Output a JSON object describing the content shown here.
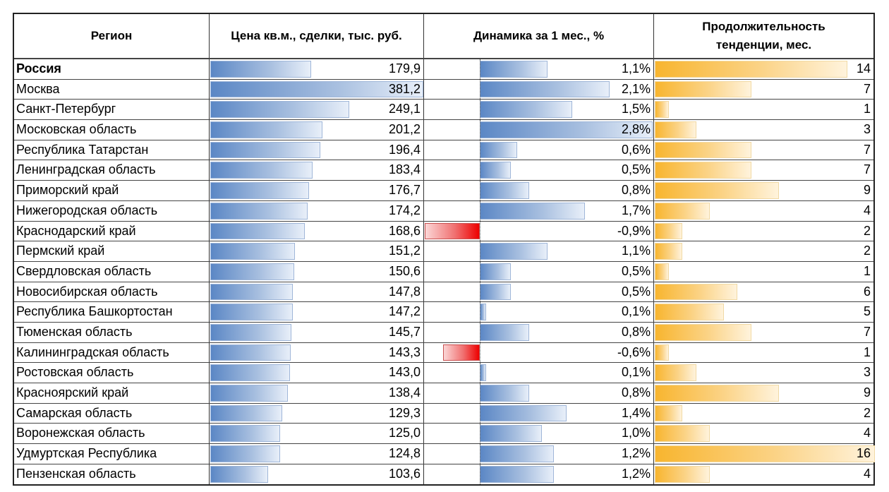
{
  "chart_data": {
    "type": "table",
    "title": "",
    "columns": [
      "Регион",
      "Цена кв.м., сделки, тыс. руб.",
      "Динамика за 1 мес., %",
      "Продолжительность тенденции, мес."
    ],
    "categories": [
      "Россия",
      "Москва",
      "Санкт-Петербург",
      "Московская область",
      "Республика Татарстан",
      "Ленинградская область",
      "Приморский край",
      "Нижегородская область",
      "Краснодарский край",
      "Пермский край",
      "Свердловская область",
      "Новосибирская область",
      "Республика Башкортостан",
      "Тюменская область",
      "Калининградская область",
      "Ростовская область",
      "Красноярский край",
      "Самарская область",
      "Воронежская область",
      "Удмуртская Республика",
      "Пензенская область"
    ],
    "series": [
      {
        "name": "Цена кв.м., сделки, тыс. руб.",
        "values": [
          179.9,
          381.2,
          249.1,
          201.2,
          196.4,
          183.4,
          176.7,
          174.2,
          168.6,
          151.2,
          150.6,
          147.8,
          147.2,
          145.7,
          143.3,
          143.0,
          138.4,
          129.3,
          125.0,
          124.8,
          103.6
        ]
      },
      {
        "name": "Динамика за 1 мес., %",
        "values": [
          1.1,
          2.1,
          1.5,
          2.8,
          0.6,
          0.5,
          0.8,
          1.7,
          -0.9,
          1.1,
          0.5,
          0.5,
          0.1,
          0.8,
          -0.6,
          0.1,
          0.8,
          1.4,
          1.0,
          1.2,
          1.2
        ]
      },
      {
        "name": "Продолжительность тенденции, мес.",
        "values": [
          14,
          7,
          1,
          3,
          7,
          7,
          9,
          4,
          2,
          2,
          1,
          6,
          5,
          7,
          1,
          3,
          9,
          2,
          4,
          16,
          4
        ]
      }
    ],
    "colors": {
      "price_bar": "#5b87c5",
      "positive_bar": "#5b87c5",
      "negative_bar": "#ee0000",
      "duration_bar": "#f8b52f"
    }
  },
  "header": {
    "region": "Регион",
    "price": "Цена кв.м., сделки, тыс. руб.",
    "dynamics": "Динамика за 1 мес., %",
    "duration_line1": "Продолжительность",
    "duration_line2": "тенденции, мес."
  },
  "rows": [
    {
      "region": "Россия",
      "price": "179,9",
      "dyn": "1,1%",
      "dur": "14",
      "bold": true
    },
    {
      "region": "Москва",
      "price": "381,2",
      "dyn": "2,1%",
      "dur": "7"
    },
    {
      "region": "Санкт-Петербург",
      "price": "249,1",
      "dyn": "1,5%",
      "dur": "1"
    },
    {
      "region": "Московская область",
      "price": "201,2",
      "dyn": "2,8%",
      "dur": "3"
    },
    {
      "region": "Республика Татарстан",
      "price": "196,4",
      "dyn": "0,6%",
      "dur": "7"
    },
    {
      "region": "Ленинградская область",
      "price": "183,4",
      "dyn": "0,5%",
      "dur": "7"
    },
    {
      "region": "Приморский край",
      "price": "176,7",
      "dyn": "0,8%",
      "dur": "9"
    },
    {
      "region": "Нижегородская область",
      "price": "174,2",
      "dyn": "1,7%",
      "dur": "4"
    },
    {
      "region": "Краснодарский край",
      "price": "168,6",
      "dyn": "-0,9%",
      "dur": "2"
    },
    {
      "region": "Пермский край",
      "price": "151,2",
      "dyn": "1,1%",
      "dur": "2"
    },
    {
      "region": "Свердловская область",
      "price": "150,6",
      "dyn": "0,5%",
      "dur": "1"
    },
    {
      "region": "Новосибирская область",
      "price": "147,8",
      "dyn": "0,5%",
      "dur": "6"
    },
    {
      "region": "Республика Башкортостан",
      "price": "147,2",
      "dyn": "0,1%",
      "dur": "5"
    },
    {
      "region": "Тюменская область",
      "price": "145,7",
      "dyn": "0,8%",
      "dur": "7"
    },
    {
      "region": "Калининградская область",
      "price": "143,3",
      "dyn": "-0,6%",
      "dur": "1"
    },
    {
      "region": "Ростовская область",
      "price": "143,0",
      "dyn": "0,1%",
      "dur": "3"
    },
    {
      "region": "Красноярский край",
      "price": "138,4",
      "dyn": "0,8%",
      "dur": "9"
    },
    {
      "region": "Самарская область",
      "price": "129,3",
      "dyn": "1,4%",
      "dur": "2"
    },
    {
      "region": "Воронежская область",
      "price": "125,0",
      "dyn": "1,0%",
      "dur": "4"
    },
    {
      "region": "Удмуртская Республика",
      "price": "124,8",
      "dyn": "1,2%",
      "dur": "16"
    },
    {
      "region": "Пензенская область",
      "price": "103,6",
      "dyn": "1,2%",
      "dur": "4"
    }
  ]
}
